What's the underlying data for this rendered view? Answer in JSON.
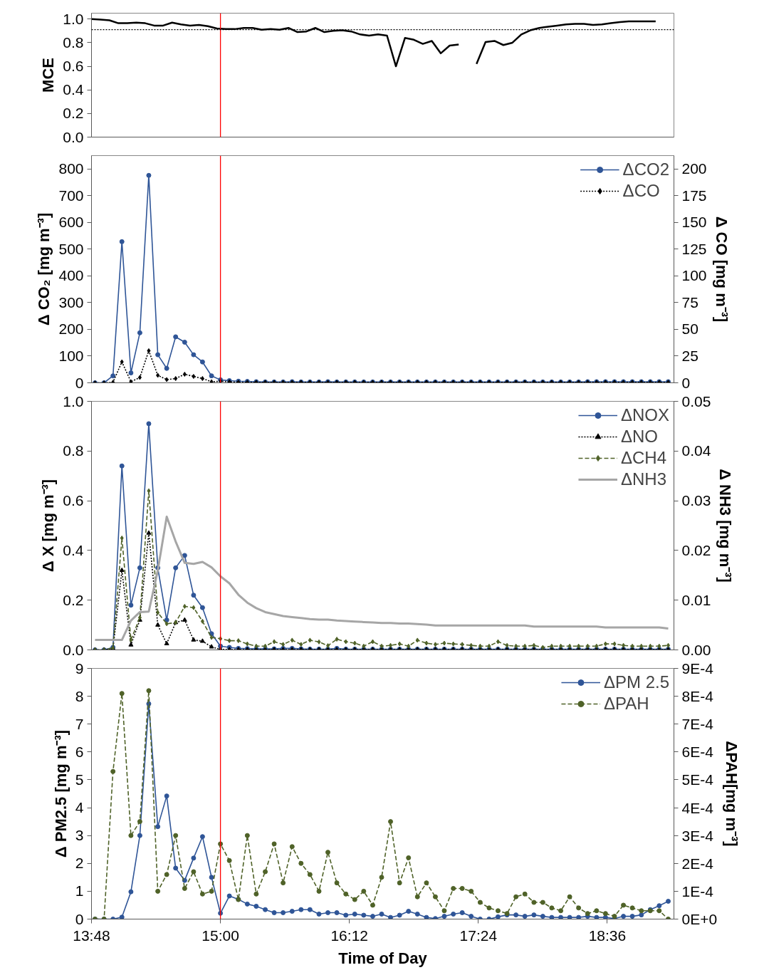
{
  "chart_data": [
    {
      "type": "line",
      "ylabel": "MCE",
      "xlim": [
        13.8,
        19.22
      ],
      "ylim": [
        0,
        1.05
      ],
      "yticks": [
        {
          "value": 0,
          "label": "0.0"
        },
        {
          "value": 0.2,
          "label": "0.2"
        },
        {
          "value": 0.4,
          "label": "0.4"
        },
        {
          "value": 0.6,
          "label": "0.6"
        },
        {
          "value": 0.8,
          "label": "0.8"
        },
        {
          "value": 1.0,
          "label": "1.0"
        }
      ],
      "tick_labels": "y",
      "grid": false,
      "ref_lines": [
        {
          "axis": "x",
          "value": 15.0,
          "color": "#ff0000",
          "line_style": "solid"
        },
        {
          "axis": "y",
          "value": 0.91,
          "color": "#000000",
          "line_style": "dotted"
        }
      ],
      "series": [
        {
          "color": "#000000",
          "marker": "none",
          "line_style": "solid",
          "x": [
            13.8,
            13.883,
            13.967,
            14.05,
            14.133,
            14.217,
            14.3,
            14.383,
            14.467,
            14.55,
            14.633,
            14.717,
            14.8,
            14.883,
            14.967,
            15.05,
            15.133,
            15.217,
            15.3,
            15.383,
            15.467,
            15.55,
            15.633,
            15.717,
            15.8,
            15.883,
            15.967,
            16.05,
            16.133,
            16.217,
            16.3,
            16.383,
            16.467,
            16.55,
            16.633,
            16.717,
            16.8,
            16.883,
            16.967,
            17.05,
            17.133,
            17.217,
            17.3,
            17.383,
            17.467,
            17.55,
            17.633,
            17.717,
            17.8,
            17.883,
            17.967,
            18.05,
            18.133,
            18.217,
            18.3,
            18.383,
            18.467,
            18.55,
            18.633,
            18.717,
            18.8,
            18.883,
            18.967,
            19.05
          ],
          "values": [
            1.0,
            0.995,
            0.99,
            0.965,
            0.965,
            0.97,
            0.965,
            0.945,
            0.945,
            0.97,
            0.955,
            0.945,
            0.95,
            0.94,
            0.92,
            0.915,
            0.915,
            0.925,
            0.925,
            0.91,
            0.915,
            0.91,
            0.925,
            0.89,
            0.895,
            0.925,
            0.89,
            0.9,
            0.905,
            0.895,
            0.87,
            0.86,
            0.87,
            0.86,
            0.6,
            0.84,
            0.825,
            0.79,
            0.815,
            0.71,
            0.775,
            0.785,
            null,
            0.62,
            0.805,
            0.815,
            0.78,
            0.8,
            0.87,
            0.905,
            0.925,
            0.935,
            0.945,
            0.955,
            0.96,
            0.96,
            0.95,
            0.955,
            0.965,
            0.975,
            0.98,
            0.98,
            0.98,
            0.98
          ]
        }
      ]
    },
    {
      "type": "line",
      "ylabel": "Δ CO₂ [mg m⁻³]",
      "y2label": "Δ CO [mg m⁻³]",
      "xlim": [
        13.8,
        19.22
      ],
      "ylim": [
        0,
        850
      ],
      "yticks": [
        0,
        100,
        200,
        300,
        400,
        500,
        600,
        700,
        800
      ],
      "y2lim": [
        0,
        212.5
      ],
      "y2ticks": [
        0,
        25,
        50,
        75,
        100,
        125,
        150,
        175,
        200
      ],
      "tick_labels": "y",
      "grid": false,
      "legend": "top right",
      "ref_lines": [
        {
          "axis": "x",
          "value": 15.0,
          "color": "#ff0000",
          "line_style": "solid"
        }
      ],
      "x": [
        13.833,
        13.917,
        14.0,
        14.083,
        14.167,
        14.25,
        14.333,
        14.417,
        14.5,
        14.583,
        14.667,
        14.75,
        14.833,
        14.917,
        15.0,
        15.083,
        15.167,
        15.25,
        15.333,
        15.417,
        15.5,
        15.583,
        15.667,
        15.75,
        15.833,
        15.917,
        16.0,
        16.083,
        16.167,
        16.25,
        16.333,
        16.417,
        16.5,
        16.583,
        16.667,
        16.75,
        16.833,
        16.917,
        17.0,
        17.083,
        17.167,
        17.25,
        17.333,
        17.417,
        17.5,
        17.583,
        17.667,
        17.75,
        17.833,
        17.917,
        18.0,
        18.083,
        18.167,
        18.25,
        18.333,
        18.417,
        18.5,
        18.583,
        18.667,
        18.75,
        18.833,
        18.917,
        19.0,
        19.083,
        19.167
      ],
      "series": [
        {
          "name": "ΔCO2",
          "color": "#2f5597",
          "marker": "circle",
          "line_style": "solid",
          "values": [
            0,
            0,
            26,
            528,
            37,
            187,
            776,
            105,
            54,
            172,
            152,
            105,
            78,
            26,
            11,
            8,
            6,
            5,
            4,
            3,
            3,
            3,
            4,
            3,
            3,
            3,
            4,
            3,
            3,
            3,
            3,
            3,
            3,
            3,
            3,
            3,
            3,
            3,
            3,
            3,
            3,
            3,
            3,
            3,
            3,
            3,
            3,
            3,
            3,
            3,
            3,
            3,
            3,
            3,
            3,
            4,
            4,
            4,
            4,
            4,
            4,
            4,
            4,
            4,
            4
          ]
        },
        {
          "name": "ΔCO",
          "color": "#000000",
          "marker": "diamond",
          "line_style": "dotted",
          "axis": "y2",
          "values": [
            0,
            0,
            0.5,
            19.6,
            1,
            5,
            30,
            7,
            3,
            4,
            8,
            6,
            4,
            1,
            1.5,
            1,
            0.5,
            0.5,
            0.5,
            0.5,
            0.5,
            0.5,
            0.5,
            0.5,
            0.5,
            0.5,
            0.5,
            0.5,
            0.5,
            0.5,
            0.5,
            0.5,
            0.5,
            0.5,
            0.5,
            0.5,
            0.5,
            0.5,
            0.5,
            0.5,
            0.5,
            0.5,
            0.5,
            0.5,
            0.5,
            0.5,
            0.5,
            0.5,
            0.5,
            0.5,
            0.5,
            0.5,
            0.5,
            0.5,
            0.5,
            0.5,
            0.5,
            0.5,
            0.5,
            0.5,
            0.5,
            0.5,
            0.5,
            0.5,
            0.5
          ]
        }
      ]
    },
    {
      "type": "line",
      "ylabel": "Δ X [mg m⁻³]",
      "y2label": "Δ NH3 [mg m⁻³]",
      "xlim": [
        13.8,
        19.22
      ],
      "ylim": [
        0,
        1.0
      ],
      "yticks": [
        {
          "value": 0,
          "label": "0.0"
        },
        {
          "value": 0.2,
          "label": "0.2"
        },
        {
          "value": 0.4,
          "label": "0.4"
        },
        {
          "value": 0.6,
          "label": "0.6"
        },
        {
          "value": 0.8,
          "label": "0.8"
        },
        {
          "value": 1.0,
          "label": "1.0"
        }
      ],
      "y2lim": [
        0,
        0.05
      ],
      "y2ticks": [
        {
          "value": 0,
          "label": "0.00"
        },
        {
          "value": 0.01,
          "label": "0.01"
        },
        {
          "value": 0.02,
          "label": "0.02"
        },
        {
          "value": 0.03,
          "label": "0.03"
        },
        {
          "value": 0.04,
          "label": "0.04"
        },
        {
          "value": 0.05,
          "label": "0.05"
        }
      ],
      "tick_labels": "y",
      "grid": false,
      "legend": "top right",
      "ref_lines": [
        {
          "axis": "x",
          "value": 15.0,
          "color": "#ff0000",
          "line_style": "solid"
        }
      ],
      "x": [
        13.833,
        13.917,
        14.0,
        14.083,
        14.167,
        14.25,
        14.333,
        14.417,
        14.5,
        14.583,
        14.667,
        14.75,
        14.833,
        14.917,
        15.0,
        15.083,
        15.167,
        15.25,
        15.333,
        15.417,
        15.5,
        15.583,
        15.667,
        15.75,
        15.833,
        15.917,
        16.0,
        16.083,
        16.167,
        16.25,
        16.333,
        16.417,
        16.5,
        16.583,
        16.667,
        16.75,
        16.833,
        16.917,
        17.0,
        17.083,
        17.167,
        17.25,
        17.333,
        17.417,
        17.5,
        17.583,
        17.667,
        17.75,
        17.833,
        17.917,
        18.0,
        18.083,
        18.167,
        18.25,
        18.333,
        18.417,
        18.5,
        18.583,
        18.667,
        18.75,
        18.833,
        18.917,
        19.0,
        19.083,
        19.167
      ],
      "series": [
        {
          "name": "ΔNOX",
          "color": "#2f5597",
          "marker": "circle",
          "line_style": "solid",
          "values": [
            0,
            0,
            0.01,
            0.74,
            0.18,
            0.33,
            0.91,
            0.33,
            0.12,
            0.33,
            0.38,
            0.22,
            0.17,
            0.065,
            0.015,
            0.01,
            0.006,
            0.005,
            0.004,
            0.004,
            0.004,
            0.006,
            0.006,
            0.004,
            0.003,
            0.003,
            0.003,
            0.006,
            0.003,
            0.003,
            0.003,
            0.003,
            0.003,
            0.003,
            0.003,
            0.003,
            0.003,
            0.003,
            0.003,
            0.003,
            0.003,
            0.003,
            0.003,
            0.003,
            0.003,
            0.003,
            0.003,
            0.003,
            0.003,
            0.003,
            0.003,
            0.003,
            0.003,
            0.003,
            0.003,
            0.003,
            0.003,
            0.003,
            0.003,
            0.003,
            0.003,
            0.003,
            0.003,
            0.003,
            0.003
          ]
        },
        {
          "name": "ΔNO",
          "color": "#000000",
          "marker": "triangle",
          "line_style": "dotted",
          "values": [
            0,
            0,
            0.005,
            0.32,
            0.02,
            0.12,
            0.47,
            0.1,
            0.025,
            0.11,
            0.12,
            0.04,
            0.035,
            0.012,
            0.002,
            0.001,
            0.001,
            0.001,
            0.001,
            0.001,
            0.001,
            0.001,
            0.001,
            0.001,
            0.001,
            0.001,
            0.001,
            0.001,
            0.001,
            0.001,
            0.001,
            0.001,
            0.001,
            0.001,
            0.001,
            0.001,
            0.001,
            0.001,
            0.001,
            0.001,
            0.001,
            0.001,
            0.001,
            0.001,
            0.001,
            0.001,
            0.001,
            0.001,
            0.001,
            0.001,
            0.001,
            0.001,
            0.001,
            0.001,
            0.001,
            0.001,
            0.001,
            0.001,
            0.001,
            0.001,
            0.001,
            0.001,
            0.001,
            0.001,
            0.001
          ]
        },
        {
          "name": "ΔCH4",
          "color": "#4f6228",
          "marker": "diamond",
          "line_style": "dashed",
          "values": [
            0,
            0,
            0.008,
            0.45,
            0.04,
            0.13,
            0.64,
            0.15,
            0.105,
            0.11,
            0.175,
            0.17,
            0.115,
            0.05,
            0.045,
            0.037,
            0.037,
            0.024,
            0.015,
            0.015,
            0.033,
            0.022,
            0.039,
            0.022,
            0.039,
            0.032,
            0.017,
            0.043,
            0.033,
            0.027,
            0.015,
            0.033,
            0.015,
            0.018,
            0.024,
            0.015,
            0.039,
            0.027,
            0.022,
            0.027,
            0.024,
            0.022,
            0.018,
            0.015,
            0.015,
            0.033,
            0.018,
            0.015,
            0.015,
            0.018,
            0.01,
            0.015,
            0.015,
            0.015,
            0.015,
            0.015,
            0.015,
            0.024,
            0.024,
            0.018,
            0.015,
            0.015,
            0.015,
            0.015,
            0.018
          ]
        },
        {
          "name": "ΔNH3",
          "color": "#a6a6a6",
          "marker": "none",
          "line_style": "solid",
          "axis": "y2",
          "values": [
            0.002,
            0.002,
            0.002,
            0.002,
            0.0059,
            0.0076,
            0.0077,
            0.016,
            0.0268,
            0.0218,
            0.0175,
            0.0173,
            0.0177,
            0.0166,
            0.0148,
            0.0134,
            0.0111,
            0.0095,
            0.0084,
            0.0076,
            0.0072,
            0.0068,
            0.0066,
            0.0064,
            0.0062,
            0.0061,
            0.0061,
            0.0059,
            0.0058,
            0.0057,
            0.0056,
            0.0055,
            0.0054,
            0.0054,
            0.0053,
            0.0053,
            0.0052,
            0.0051,
            0.0049,
            0.0049,
            0.0049,
            0.0049,
            0.0049,
            0.0049,
            0.0049,
            0.0049,
            0.0049,
            0.0049,
            0.0049,
            0.0047,
            0.0047,
            0.0047,
            0.0047,
            0.0047,
            0.0047,
            0.0047,
            0.0047,
            0.0045,
            0.0045,
            0.0045,
            0.0045,
            0.0045,
            0.0045,
            0.0045,
            0.0043
          ]
        }
      ]
    },
    {
      "type": "line",
      "xlabel": "Time of Day",
      "ylabel": "Δ PM2.5 [mg m⁻³]",
      "y2label": "ΔPAH[mg m⁻³]",
      "xlim": [
        13.8,
        19.22
      ],
      "xticks": [
        {
          "value": 13.8,
          "label": "13:48"
        },
        {
          "value": 15.0,
          "label": "15:00"
        },
        {
          "value": 16.2,
          "label": "16:12"
        },
        {
          "value": 17.4,
          "label": "17:24"
        },
        {
          "value": 18.6,
          "label": "18:36"
        }
      ],
      "ylim": [
        0,
        9
      ],
      "yticks": [
        0,
        1,
        2,
        3,
        4,
        5,
        6,
        7,
        8,
        9
      ],
      "y2lim": [
        0,
        0.0009
      ],
      "y2ticks": [
        {
          "value": 0,
          "label": "0E+0"
        },
        {
          "value": 0.0001,
          "label": "1E-4"
        },
        {
          "value": 0.0002,
          "label": "2E-4"
        },
        {
          "value": 0.0003,
          "label": "3E-4"
        },
        {
          "value": 0.0004,
          "label": "4E-4"
        },
        {
          "value": 0.0005,
          "label": "5E-4"
        },
        {
          "value": 0.0006,
          "label": "6E-4"
        },
        {
          "value": 0.0007,
          "label": "7E-4"
        },
        {
          "value": 0.0008,
          "label": "8E-4"
        },
        {
          "value": 0.0009,
          "label": "9E-4"
        }
      ],
      "grid": false,
      "legend": "top right",
      "ref_lines": [
        {
          "axis": "x",
          "value": 15.0,
          "color": "#ff0000",
          "line_style": "solid"
        }
      ],
      "x": [
        13.833,
        13.917,
        14.0,
        14.083,
        14.167,
        14.25,
        14.333,
        14.417,
        14.5,
        14.583,
        14.667,
        14.75,
        14.833,
        14.917,
        15.0,
        15.083,
        15.167,
        15.25,
        15.333,
        15.417,
        15.5,
        15.583,
        15.667,
        15.75,
        15.833,
        15.917,
        16.0,
        16.083,
        16.167,
        16.25,
        16.333,
        16.417,
        16.5,
        16.583,
        16.667,
        16.75,
        16.833,
        16.917,
        17.0,
        17.083,
        17.167,
        17.25,
        17.333,
        17.417,
        17.5,
        17.583,
        17.667,
        17.75,
        17.833,
        17.917,
        18.0,
        18.083,
        18.167,
        18.25,
        18.333,
        18.417,
        18.5,
        18.583,
        18.667,
        18.75,
        18.833,
        18.917,
        19.0,
        19.083,
        19.167
      ],
      "series": [
        {
          "name": "ΔPM 2.5",
          "color": "#2f5597",
          "marker": "circle",
          "line_style": "solid",
          "values": [
            0,
            0,
            0,
            0.07,
            0.98,
            3.0,
            7.73,
            3.32,
            4.42,
            1.83,
            1.39,
            2.19,
            2.96,
            1.5,
            0.21,
            0.83,
            0.71,
            0.54,
            0.46,
            0.34,
            0.23,
            0.23,
            0.28,
            0.34,
            0.34,
            0.18,
            0.23,
            0.23,
            0.14,
            0.18,
            0.14,
            0.1,
            0.18,
            0.06,
            0.14,
            0.28,
            0.18,
            0.06,
            0.02,
            0.1,
            0.18,
            0.23,
            0.1,
            0,
            0,
            0.08,
            0.15,
            0.15,
            0.1,
            0.15,
            0.1,
            0.06,
            0.06,
            0.06,
            0.06,
            0.1,
            0.06,
            0.06,
            0.02,
            0.1,
            0.1,
            0.15,
            0.34,
            0.48,
            0.64
          ]
        },
        {
          "name": "ΔPAH",
          "color": "#4f6228",
          "marker": "circle",
          "line_style": "dashed",
          "axis": "y2",
          "values": [
            0,
            0,
            0.00053,
            0.00081,
            0.0003,
            0.00035,
            0.00082,
            0.0001,
            0.00016,
            0.0003,
            0.00011,
            0.00017,
            9e-05,
            0.0001,
            0.00027,
            0.00021,
            7e-05,
            0.0003,
            9e-05,
            0.00017,
            0.00027,
            0.00013,
            0.00026,
            0.0002,
            0.00016,
            0.0001,
            0.00024,
            0.00013,
            9e-05,
            7e-05,
            0.0001,
            5e-05,
            0.00015,
            0.00035,
            0.00013,
            0.00022,
            8e-05,
            0.00013,
            8e-05,
            3e-05,
            0.00011,
            0.00011,
            0.0001,
            6e-05,
            4e-05,
            3e-05,
            2e-05,
            8e-05,
            9e-05,
            6e-05,
            6e-05,
            4e-05,
            3e-05,
            8e-05,
            4e-05,
            2e-05,
            3e-05,
            2e-05,
            1e-05,
            5e-05,
            4e-05,
            3e-05,
            3e-05,
            3e-05,
            0
          ]
        }
      ]
    }
  ]
}
